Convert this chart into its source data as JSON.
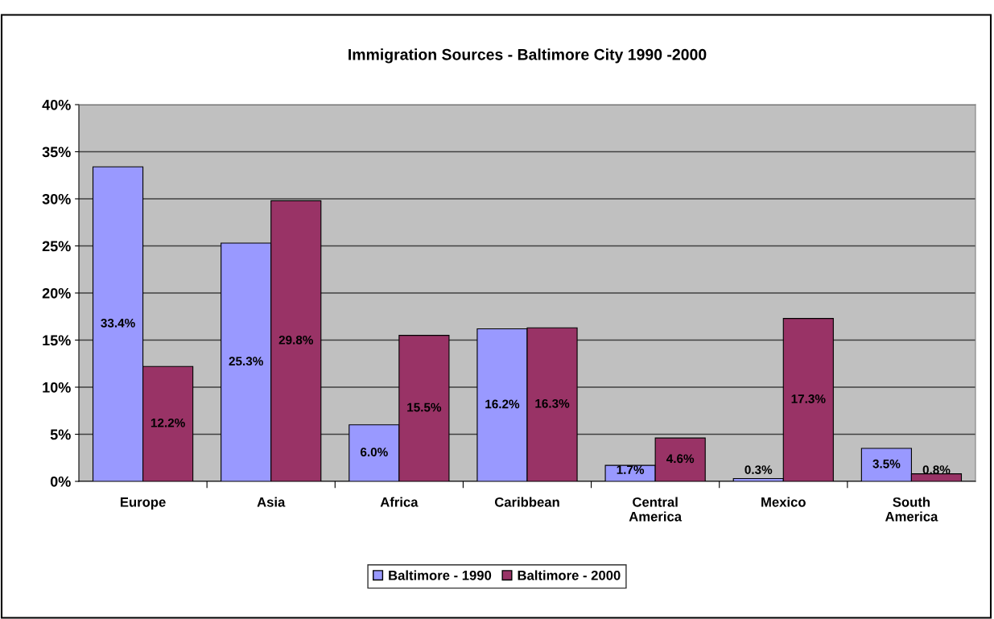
{
  "chart_data": {
    "type": "bar",
    "title": "Immigration Sources - Baltimore City 1990 -2000",
    "categories": [
      "Europe",
      "Asia",
      "Africa",
      "Caribbean",
      "Central\nAmerica",
      "Mexico",
      "South\nAmerica"
    ],
    "series": [
      {
        "name": "Baltimore - 1990",
        "color": "#9999ff",
        "values": [
          33.4,
          25.3,
          6.0,
          16.2,
          1.7,
          0.3,
          3.5
        ],
        "value_labels": [
          "33.4%",
          "25.3%",
          "6.0%",
          "16.2%",
          "1.7%",
          "0.3%",
          "3.5%"
        ]
      },
      {
        "name": "Baltimore - 2000",
        "color": "#993366",
        "values": [
          12.2,
          29.8,
          15.5,
          16.3,
          4.6,
          17.3,
          0.8
        ],
        "value_labels": [
          "12.2%",
          "29.8%",
          "15.5%",
          "16.3%",
          "4.6%",
          "17.3%",
          "0.8%"
        ]
      }
    ],
    "ylim": [
      0,
      40
    ],
    "yticks": [
      {
        "value": 0,
        "label": "0%"
      },
      {
        "value": 5,
        "label": "5%"
      },
      {
        "value": 10,
        "label": "10%"
      },
      {
        "value": 15,
        "label": "15%"
      },
      {
        "value": 20,
        "label": "20%"
      },
      {
        "value": 25,
        "label": "25%"
      },
      {
        "value": 30,
        "label": "30%"
      },
      {
        "value": 35,
        "label": "35%"
      },
      {
        "value": 40,
        "label": "40%"
      }
    ],
    "grid": "y",
    "legend": "bottom"
  }
}
